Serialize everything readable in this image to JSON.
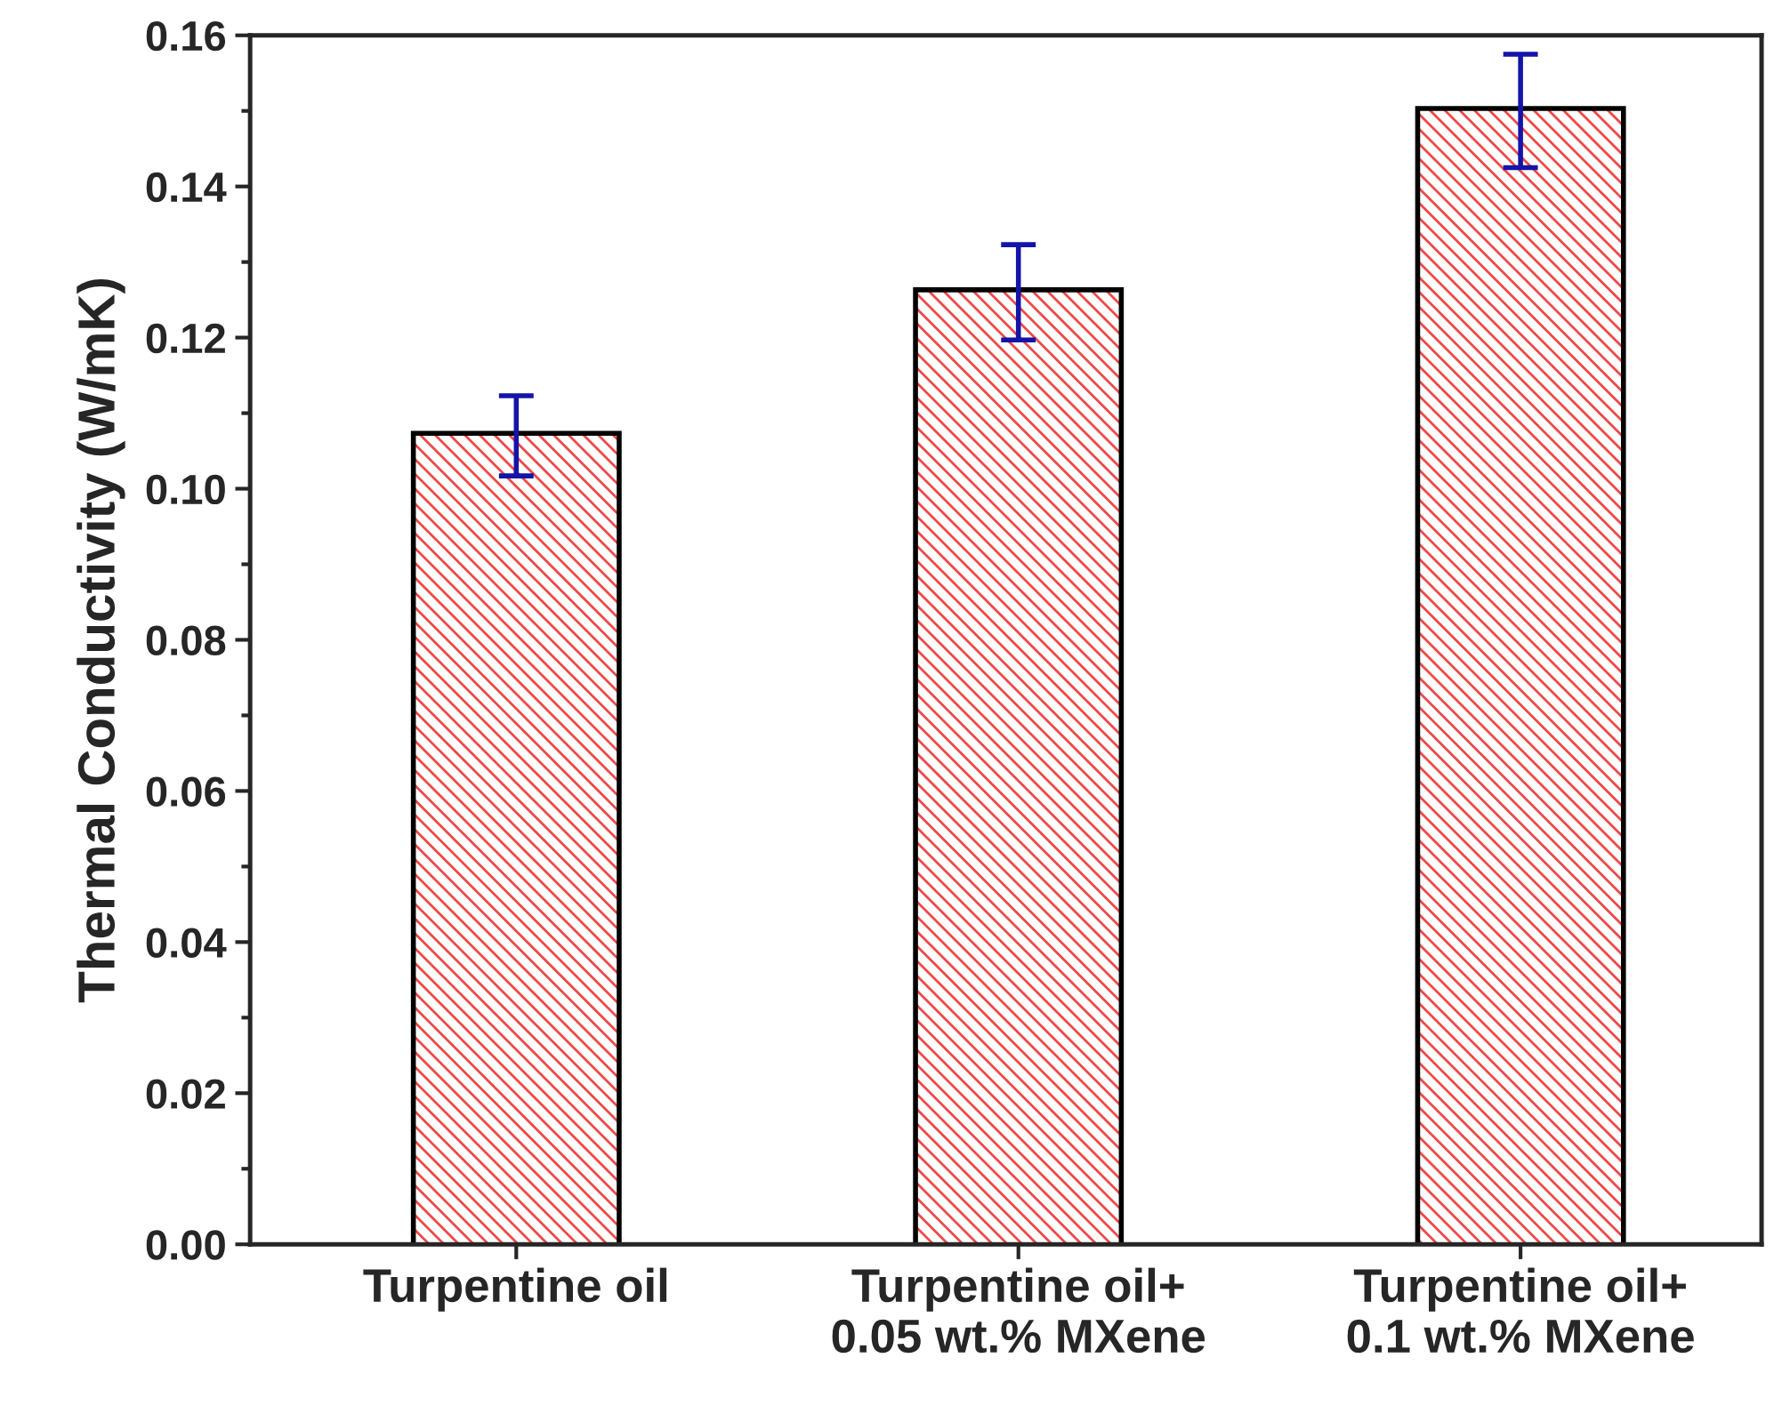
{
  "chart_data": {
    "type": "bar",
    "ylabel": "Thermal Conductivity (W/mK)",
    "categories": [
      "Turpentine oil",
      "Turpentine oil+\n0.05 wt.% MXene",
      "Turpentine oil+\n0.1 wt.% MXene"
    ],
    "values": [
      0.107,
      0.126,
      0.15
    ],
    "errors": [
      0.0053,
      0.0063,
      0.0075
    ],
    "color": "#f04848",
    "ylim": [
      0,
      0.16
    ],
    "yticks": [
      {
        "value": 0,
        "label": "0.00"
      },
      {
        "value": 0.02,
        "label": "0.02"
      },
      {
        "value": 0.04,
        "label": "0.04"
      },
      {
        "value": 0.06,
        "label": "0.06"
      },
      {
        "value": 0.08,
        "label": "0.08"
      },
      {
        "value": 0.1,
        "label": "0.10"
      },
      {
        "value": 0.12,
        "label": "0.12"
      },
      {
        "value": 0.14,
        "label": "0.14"
      },
      {
        "value": 0.16,
        "label": "0.16"
      }
    ],
    "grid": false
  }
}
